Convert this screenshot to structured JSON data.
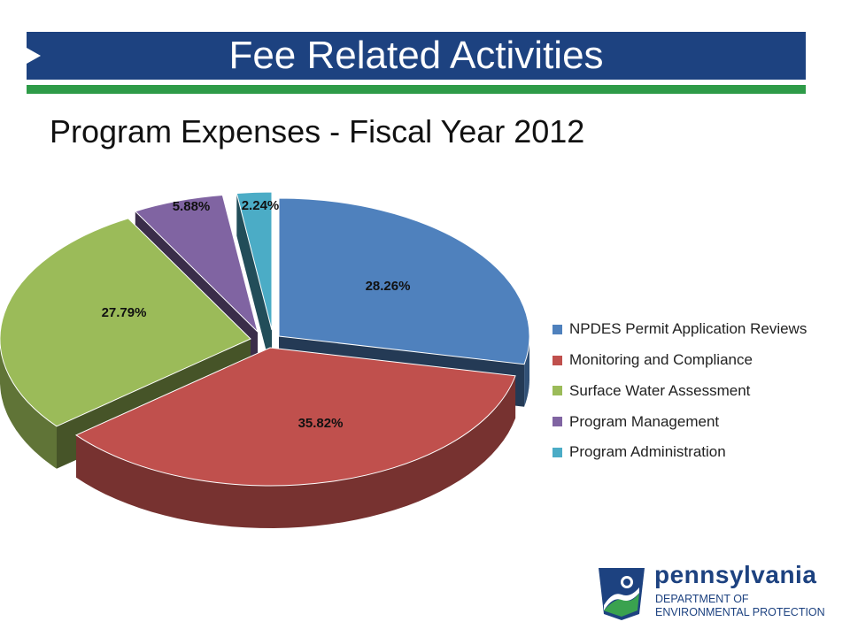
{
  "header": {
    "title": "Fee Related Activities",
    "bar_color": "#1d4280",
    "rule_color": "#2e9b48"
  },
  "subtitle": "Program Expenses - Fiscal Year 2012",
  "chart_data": {
    "type": "pie",
    "style": "3d-exploded",
    "title": "",
    "legend_position": "right",
    "slices": [
      {
        "label": "NPDES Permit Application Reviews",
        "value": 28.26,
        "value_label": "28.26%",
        "color": "#4f81bd"
      },
      {
        "label": "Monitoring and Compliance",
        "value": 35.82,
        "value_label": "35.82%",
        "color": "#c0504d"
      },
      {
        "label": "Surface Water Assessment",
        "value": 27.79,
        "value_label": "27.79%",
        "color": "#9bbb59"
      },
      {
        "label": "Program Management",
        "value": 5.88,
        "value_label": "5.88%",
        "color": "#8064a2"
      },
      {
        "label": "Program Administration",
        "value": 2.24,
        "value_label": "2.24%",
        "color": "#4bacc6"
      }
    ]
  },
  "logo": {
    "name": "pennsylvania",
    "department": "DEPARTMENT OF ENVIRONMENTAL PROTECTION"
  }
}
